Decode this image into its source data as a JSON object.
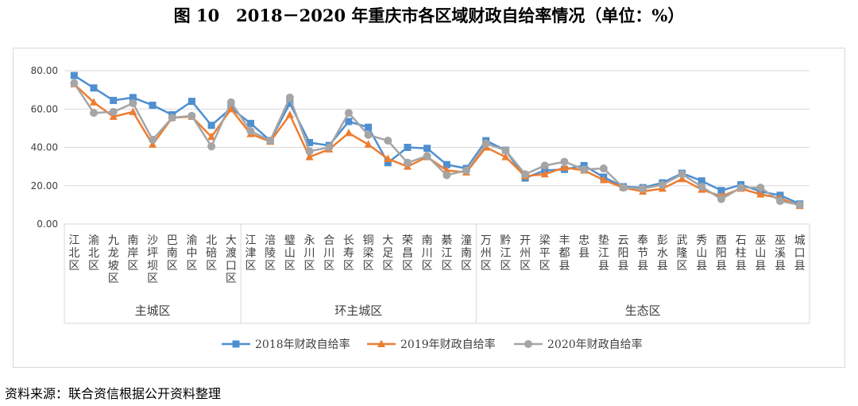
{
  "title": "图 10　2018－2020 年重庆市各区域财政自给率情况（单位：%）",
  "source": "资料来源：联合资信根据公开资料整理",
  "chart_data": {
    "type": "line",
    "title": "",
    "ylim": [
      0,
      80
    ],
    "yticks": [
      "0.00",
      "20.00",
      "40.00",
      "60.00",
      "80.00"
    ],
    "grid": true,
    "legend_position": "bottom",
    "categories": [
      "江北区",
      "渝北区",
      "九龙坡区",
      "南岸区",
      "沙坪坝区",
      "巴南区",
      "渝中区",
      "北碚区",
      "大渡口区",
      "江津区",
      "涪陵区",
      "璧山区",
      "永川区",
      "合川区",
      "长寿区",
      "铜梁区",
      "大足区",
      "荣昌区",
      "南川区",
      "綦江区",
      "潼南区",
      "万州区",
      "黔江区",
      "开州区",
      "梁平区",
      "丰都县",
      "忠县",
      "垫江县",
      "云阳县",
      "奉节县",
      "彭水县",
      "武隆区",
      "秀山县",
      "酉阳县",
      "石柱县",
      "巫山县",
      "巫溪县",
      "城口县"
    ],
    "groups": [
      {
        "name": "主城区",
        "count": 9
      },
      {
        "name": "环主城区",
        "count": 12
      },
      {
        "name": "生态区",
        "count": 17
      }
    ],
    "series": [
      {
        "name": "2018年财政自给率",
        "color": "#4f8fcf",
        "marker": "square",
        "values": [
          77.5,
          71.0,
          64.5,
          66.0,
          62.0,
          57.0,
          64.0,
          51.5,
          60.5,
          52.5,
          43.5,
          63.0,
          42.5,
          41.0,
          53.5,
          50.5,
          32.0,
          40.0,
          39.5,
          31.0,
          29.0,
          43.5,
          38.5,
          24.0,
          28.0,
          28.5,
          30.5,
          24.5,
          19.5,
          19.0,
          21.5,
          26.5,
          22.5,
          17.5,
          20.5,
          17.0,
          15.0,
          10.5
        ]
      },
      {
        "name": "2019年财政自给率",
        "color": "#ed7d31",
        "marker": "triangle",
        "values": [
          73.0,
          63.5,
          56.0,
          58.5,
          41.5,
          55.5,
          56.0,
          45.5,
          60.0,
          47.0,
          43.0,
          57.0,
          35.0,
          39.0,
          47.5,
          41.5,
          34.0,
          30.0,
          35.0,
          28.0,
          27.0,
          40.0,
          35.0,
          25.0,
          26.0,
          29.5,
          28.0,
          23.0,
          19.0,
          17.0,
          18.5,
          23.5,
          18.0,
          14.5,
          18.5,
          15.5,
          13.5,
          9.5
        ]
      },
      {
        "name": "2020年财政自给率",
        "color": "#a5a5a5",
        "marker": "circle",
        "values": [
          73.5,
          58.0,
          58.5,
          63.0,
          44.0,
          55.5,
          56.5,
          40.5,
          63.5,
          48.5,
          43.5,
          66.0,
          38.0,
          40.0,
          58.0,
          46.5,
          43.5,
          32.0,
          35.5,
          25.5,
          28.0,
          42.0,
          38.5,
          26.0,
          30.5,
          32.5,
          28.5,
          29.0,
          19.0,
          18.5,
          20.5,
          26.0,
          19.5,
          13.0,
          19.0,
          19.0,
          12.0,
          10.0
        ]
      }
    ]
  }
}
